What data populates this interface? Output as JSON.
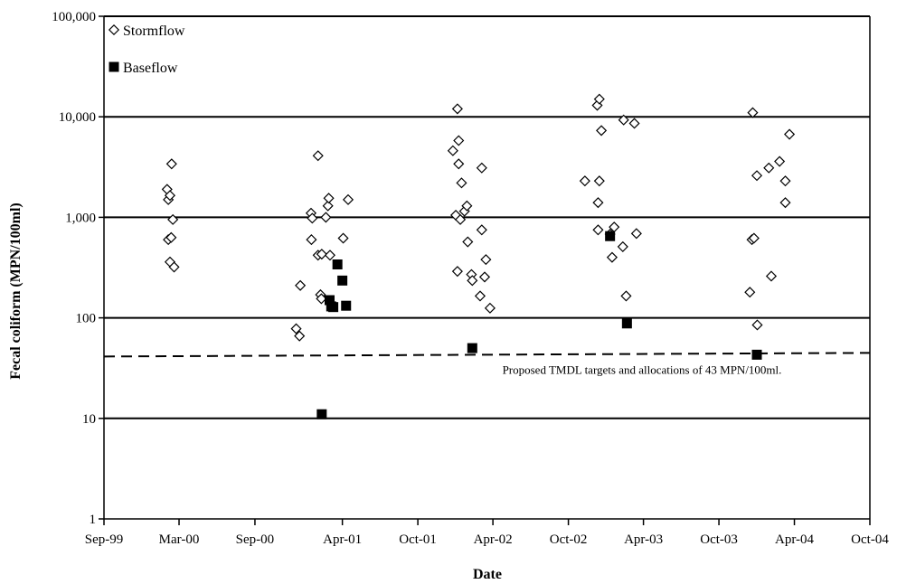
{
  "chart_data": {
    "type": "scatter",
    "title": "",
    "xlabel": "Date",
    "ylabel": "Fecal coliform (MPN/100ml)",
    "y_scale": "log",
    "ylim": [
      1,
      100000
    ],
    "y_ticks": [
      1,
      10,
      100,
      1000,
      10000,
      100000
    ],
    "y_tick_labels": [
      "1",
      "10",
      "100",
      "1,000",
      "10,000",
      "100,000"
    ],
    "xlim": [
      "1999-09-01",
      "2004-10-01"
    ],
    "x_ticks": [
      "1999-09-01",
      "2000-03-01",
      "2000-09-01",
      "2001-04-01",
      "2001-10-01",
      "2002-04-01",
      "2002-10-01",
      "2003-04-01",
      "2003-10-01",
      "2004-04-01",
      "2004-10-01"
    ],
    "x_tick_labels": [
      "Sep-99",
      "Mar-00",
      "Sep-00",
      "Apr-01",
      "Oct-01",
      "Apr-02",
      "Oct-02",
      "Apr-03",
      "Oct-03",
      "Apr-04",
      "Oct-04"
    ],
    "grid": "horizontal major lines at decades",
    "legend_position": "top-left",
    "series": [
      {
        "name": "Stormflow",
        "marker": "open-diamond",
        "points": [
          {
            "x": "2000-02-01",
            "y": 1900
          },
          {
            "x": "2000-02-04",
            "y": 1500
          },
          {
            "x": "2000-02-08",
            "y": 1650
          },
          {
            "x": "2000-02-12",
            "y": 3400
          },
          {
            "x": "2000-02-15",
            "y": 950
          },
          {
            "x": "2000-02-04",
            "y": 600
          },
          {
            "x": "2000-02-11",
            "y": 630
          },
          {
            "x": "2000-02-08",
            "y": 360
          },
          {
            "x": "2000-02-18",
            "y": 320
          },
          {
            "x": "2000-12-10",
            "y": 78
          },
          {
            "x": "2000-12-18",
            "y": 66
          },
          {
            "x": "2000-12-20",
            "y": 210
          },
          {
            "x": "2001-01-15",
            "y": 1100
          },
          {
            "x": "2001-01-18",
            "y": 980
          },
          {
            "x": "2001-01-16",
            "y": 600
          },
          {
            "x": "2001-02-01",
            "y": 4100
          },
          {
            "x": "2001-02-01",
            "y": 420
          },
          {
            "x": "2001-02-10",
            "y": 430
          },
          {
            "x": "2001-02-07",
            "y": 170
          },
          {
            "x": "2001-02-09",
            "y": 155
          },
          {
            "x": "2001-02-20",
            "y": 1000
          },
          {
            "x": "2001-02-25",
            "y": 1300
          },
          {
            "x": "2001-02-27",
            "y": 1550
          },
          {
            "x": "2001-03-02",
            "y": 420
          },
          {
            "x": "2001-04-03",
            "y": 620
          },
          {
            "x": "2001-04-15",
            "y": 1500
          },
          {
            "x": "2001-12-25",
            "y": 4600
          },
          {
            "x": "2002-01-05",
            "y": 12000
          },
          {
            "x": "2002-01-08",
            "y": 5800
          },
          {
            "x": "2002-01-08",
            "y": 3400
          },
          {
            "x": "2002-01-15",
            "y": 2200
          },
          {
            "x": "2002-01-01",
            "y": 1050
          },
          {
            "x": "2002-01-12",
            "y": 950
          },
          {
            "x": "2002-01-22",
            "y": 1150
          },
          {
            "x": "2002-01-28",
            "y": 1300
          },
          {
            "x": "2002-01-05",
            "y": 290
          },
          {
            "x": "2002-01-30",
            "y": 570
          },
          {
            "x": "2002-02-08",
            "y": 270
          },
          {
            "x": "2002-02-10",
            "y": 235
          },
          {
            "x": "2002-03-05",
            "y": 3100
          },
          {
            "x": "2002-03-05",
            "y": 750
          },
          {
            "x": "2002-03-01",
            "y": 165
          },
          {
            "x": "2002-03-15",
            "y": 380
          },
          {
            "x": "2002-03-12",
            "y": 255
          },
          {
            "x": "2002-03-25",
            "y": 125
          },
          {
            "x": "2002-11-10",
            "y": 2300
          },
          {
            "x": "2002-12-10",
            "y": 13000
          },
          {
            "x": "2002-12-15",
            "y": 15000
          },
          {
            "x": "2002-12-20",
            "y": 7300
          },
          {
            "x": "2002-12-15",
            "y": 2300
          },
          {
            "x": "2002-12-12",
            "y": 1400
          },
          {
            "x": "2002-12-12",
            "y": 750
          },
          {
            "x": "2003-01-10",
            "y": 680
          },
          {
            "x": "2003-01-20",
            "y": 800
          },
          {
            "x": "2003-01-15",
            "y": 400
          },
          {
            "x": "2003-02-10",
            "y": 510
          },
          {
            "x": "2003-02-12",
            "y": 9300
          },
          {
            "x": "2003-02-18",
            "y": 165
          },
          {
            "x": "2003-03-10",
            "y": 8600
          },
          {
            "x": "2003-03-15",
            "y": 690
          },
          {
            "x": "2003-12-15",
            "y": 180
          },
          {
            "x": "2003-12-20",
            "y": 600
          },
          {
            "x": "2003-12-25",
            "y": 620
          },
          {
            "x": "2003-12-22",
            "y": 11000
          },
          {
            "x": "2004-01-01",
            "y": 2600
          },
          {
            "x": "2004-01-02",
            "y": 85
          },
          {
            "x": "2004-01-30",
            "y": 3100
          },
          {
            "x": "2004-02-05",
            "y": 260
          },
          {
            "x": "2004-02-25",
            "y": 3600
          },
          {
            "x": "2004-03-10",
            "y": 2300
          },
          {
            "x": "2004-03-10",
            "y": 1400
          },
          {
            "x": "2004-03-20",
            "y": 6700
          }
        ]
      },
      {
        "name": "Baseflow",
        "marker": "filled-square",
        "points": [
          {
            "x": "2001-02-10",
            "y": 11
          },
          {
            "x": "2001-03-01",
            "y": 150
          },
          {
            "x": "2001-03-05",
            "y": 130
          },
          {
            "x": "2001-03-10",
            "y": 128
          },
          {
            "x": "2001-03-20",
            "y": 340
          },
          {
            "x": "2001-04-01",
            "y": 235
          },
          {
            "x": "2001-04-10",
            "y": 132
          },
          {
            "x": "2002-02-10",
            "y": 50
          },
          {
            "x": "2003-01-10",
            "y": 650
          },
          {
            "x": "2003-02-20",
            "y": 88
          },
          {
            "x": "2004-01-01",
            "y": 43
          }
        ]
      }
    ],
    "reference_line": {
      "value": 43,
      "style": "dashed",
      "label": "Proposed TMDL targets and allocations of 43 MPN/100ml."
    }
  }
}
